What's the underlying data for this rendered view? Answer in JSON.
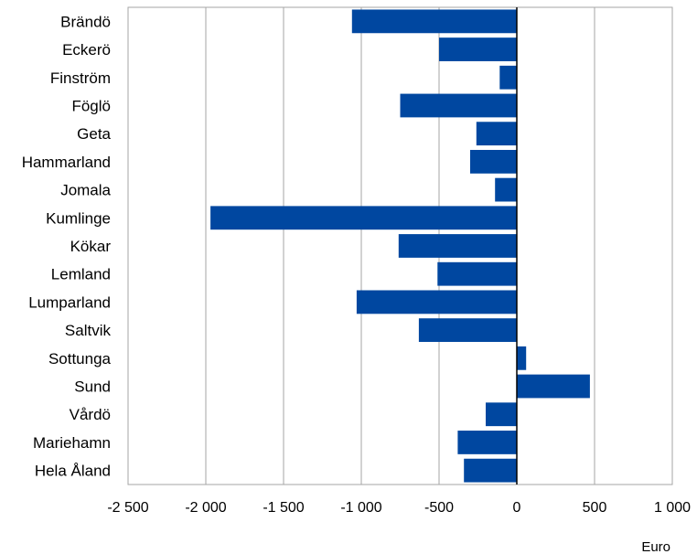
{
  "chart_data": {
    "type": "bar",
    "orientation": "horizontal",
    "title": "",
    "categories": [
      "Brändö",
      "Eckerö",
      "Finström",
      "Föglö",
      "Geta",
      "Hammarland",
      "Jomala",
      "Kumlinge",
      "Kökar",
      "Lemland",
      "Lumparland",
      "Saltvik",
      "Sottunga",
      "Sund",
      "Vårdö",
      "Mariehamn",
      "Hela Åland"
    ],
    "values": [
      -1060,
      -500,
      -110,
      -750,
      -260,
      -300,
      -140,
      -1970,
      -760,
      -510,
      -1030,
      -630,
      60,
      470,
      -200,
      -380,
      -340
    ],
    "x_ticks": [
      -2500,
      -2000,
      -1500,
      -1000,
      -500,
      0,
      500,
      1000
    ],
    "x_tick_labels": [
      "-2 500",
      "-2 000",
      "-1 500",
      "-1 000",
      "-500",
      "0",
      "500",
      "1 000"
    ],
    "xlim": [
      -2500,
      1000
    ],
    "xlabel": "Euro",
    "ylabel": "",
    "grid": "vertical",
    "legend": "none",
    "bar_color": "#0047A0",
    "grid_color": "#A6A6A6",
    "axis_color": "#000000"
  }
}
